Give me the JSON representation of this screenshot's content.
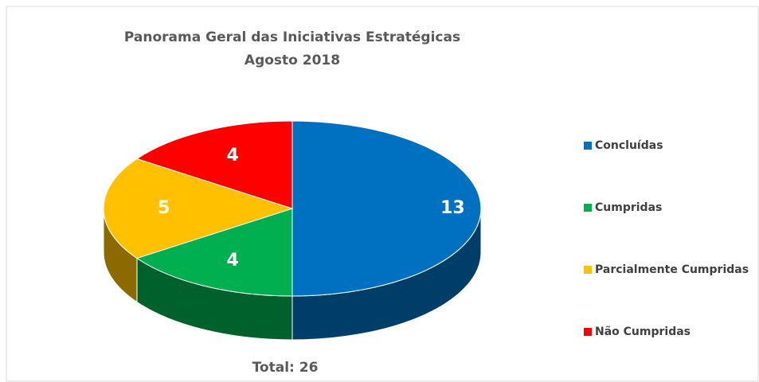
{
  "chart_data": {
    "type": "pie",
    "title": "Panorama Geral das Iniciativas Estratégicas",
    "subtitle": "Agosto 2018",
    "categories": [
      "Concluídas",
      "Cumpridas",
      "Parcialmente Cumpridas",
      "Não Cumpridas"
    ],
    "values": [
      13,
      4,
      5,
      4
    ],
    "colors": [
      "#0070c0",
      "#00b050",
      "#ffc000",
      "#ff0000"
    ],
    "annotation": "Total: 26",
    "legend": "right"
  }
}
